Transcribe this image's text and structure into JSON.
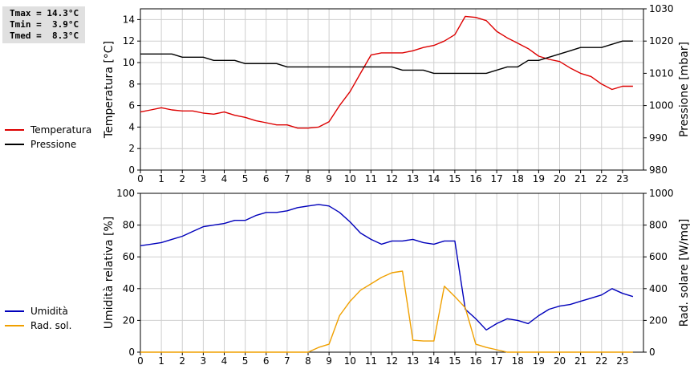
{
  "stats": [
    {
      "label": "Tmax",
      "value": "14.3°C"
    },
    {
      "label": "Tmin",
      "value": "3.9°C"
    },
    {
      "label": "Tmed",
      "value": "8.3°C"
    }
  ],
  "colors": {
    "temperature": "#dd0000",
    "pressure": "#000000",
    "humidity": "#0000bb",
    "radiation": "#f0a000",
    "grid": "#cfcfcf"
  },
  "chart_data": [
    {
      "type": "line",
      "xlabel": "",
      "ylabel": "Temperatura [°C]",
      "y2label": "Pressione [mbar]",
      "xlim": [
        0,
        24
      ],
      "ylim": [
        0,
        15
      ],
      "y2lim": [
        980,
        1030
      ],
      "xticks": [
        0,
        1,
        2,
        3,
        4,
        5,
        6,
        7,
        8,
        9,
        10,
        11,
        12,
        13,
        14,
        15,
        16,
        17,
        18,
        19,
        20,
        21,
        22,
        23
      ],
      "yticks": [
        0,
        2,
        4,
        6,
        8,
        10,
        12,
        14
      ],
      "y2ticks": [
        980,
        990,
        1000,
        1010,
        1020,
        1030
      ],
      "grid": true,
      "legend": "left",
      "series": [
        {
          "name": "Temperatura",
          "axis": "left",
          "x": [
            0,
            0.5,
            1,
            1.5,
            2,
            2.5,
            3,
            3.5,
            4,
            4.5,
            5,
            5.5,
            6,
            6.5,
            7,
            7.5,
            8,
            8.5,
            9,
            9.5,
            10,
            10.5,
            11,
            11.5,
            12,
            12.5,
            13,
            13.5,
            14,
            14.5,
            15,
            15.5,
            16,
            16.5,
            17,
            17.5,
            18,
            18.5,
            19,
            19.5,
            20,
            20.5,
            21,
            21.5,
            22,
            22.5,
            23,
            23.5
          ],
          "y": [
            5.4,
            5.6,
            5.8,
            5.6,
            5.5,
            5.5,
            5.3,
            5.2,
            5.4,
            5.1,
            4.9,
            4.6,
            4.4,
            4.2,
            4.2,
            3.9,
            3.9,
            4.0,
            4.5,
            6.0,
            7.3,
            9.0,
            10.7,
            10.9,
            10.9,
            10.9,
            11.1,
            11.4,
            11.6,
            12.0,
            12.6,
            14.3,
            14.2,
            13.9,
            12.9,
            12.3,
            11.8,
            11.3,
            10.6,
            10.3,
            10.1,
            9.5,
            9.0,
            8.7,
            8.0,
            7.5,
            7.8,
            7.8
          ]
        },
        {
          "name": "Pressione",
          "axis": "right",
          "x": [
            0,
            0.5,
            1,
            1.5,
            2,
            2.5,
            3,
            3.5,
            4,
            4.5,
            5,
            5.5,
            6,
            6.5,
            7,
            7.5,
            8,
            8.5,
            9,
            9.5,
            10,
            10.5,
            11,
            11.5,
            12,
            12.5,
            13,
            13.5,
            14,
            14.5,
            15,
            15.5,
            16,
            16.5,
            17,
            17.5,
            18,
            18.5,
            19,
            19.5,
            20,
            20.5,
            21,
            21.5,
            22,
            22.5,
            23,
            23.5
          ],
          "y": [
            1016,
            1016,
            1016,
            1016,
            1015,
            1015,
            1015,
            1014,
            1014,
            1014,
            1013,
            1013,
            1013,
            1013,
            1012,
            1012,
            1012,
            1012,
            1012,
            1012,
            1012,
            1012,
            1012,
            1012,
            1012,
            1011,
            1011,
            1011,
            1010,
            1010,
            1010,
            1010,
            1010,
            1010,
            1011,
            1012,
            1012,
            1014,
            1014,
            1015,
            1016,
            1017,
            1018,
            1018,
            1018,
            1019,
            1020,
            1020
          ]
        }
      ]
    },
    {
      "type": "line",
      "xlabel": "",
      "ylabel": "Umidità relativa [%]",
      "y2label": "Rad. solare [W/mq]",
      "xlim": [
        0,
        24
      ],
      "ylim": [
        0,
        100
      ],
      "y2lim": [
        0,
        1000
      ],
      "xticks": [
        0,
        1,
        2,
        3,
        4,
        5,
        6,
        7,
        8,
        9,
        10,
        11,
        12,
        13,
        14,
        15,
        16,
        17,
        18,
        19,
        20,
        21,
        22,
        23
      ],
      "yticks": [
        0,
        20,
        40,
        60,
        80,
        100
      ],
      "y2ticks": [
        0,
        200,
        400,
        600,
        800,
        1000
      ],
      "grid": true,
      "legend": "left",
      "series": [
        {
          "name": "Umidità",
          "axis": "left",
          "x": [
            0,
            0.5,
            1,
            1.5,
            2,
            2.5,
            3,
            3.5,
            4,
            4.5,
            5,
            5.5,
            6,
            6.5,
            7,
            7.5,
            8,
            8.5,
            9,
            9.5,
            10,
            10.5,
            11,
            11.5,
            12,
            12.5,
            13,
            13.5,
            14,
            14.5,
            15,
            15.5,
            16,
            16.5,
            17,
            17.5,
            18,
            18.5,
            19,
            19.5,
            20,
            20.5,
            21,
            21.5,
            22,
            22.5,
            23,
            23.5
          ],
          "y": [
            67,
            68,
            69,
            71,
            73,
            76,
            79,
            80,
            81,
            83,
            83,
            86,
            88,
            88,
            89,
            91,
            92,
            93,
            92,
            88,
            82,
            75,
            71,
            68,
            70,
            70,
            71,
            69,
            68,
            70,
            70,
            27,
            21,
            14,
            18,
            21,
            20,
            18,
            23,
            27,
            29,
            30,
            32,
            34,
            36,
            40,
            37,
            35
          ]
        },
        {
          "name": "Rad. sol.",
          "axis": "right",
          "x": [
            0,
            0.5,
            1,
            1.5,
            2,
            2.5,
            3,
            3.5,
            4,
            4.5,
            5,
            5.5,
            6,
            6.5,
            7,
            7.5,
            8,
            8.5,
            9,
            9.5,
            10,
            10.5,
            11,
            11.5,
            12,
            12.5,
            13,
            13.5,
            14,
            14.5,
            15,
            15.5,
            16,
            16.5,
            17,
            17.5,
            18,
            18.5,
            19,
            19.5,
            20,
            20.5,
            21,
            21.5,
            22,
            22.5,
            23,
            23.5
          ],
          "y": [
            0,
            0,
            0,
            0,
            0,
            0,
            0,
            0,
            0,
            0,
            0,
            0,
            0,
            0,
            0,
            0,
            0,
            30,
            50,
            230,
            320,
            390,
            430,
            470,
            500,
            510,
            75,
            70,
            70,
            415,
            350,
            280,
            50,
            30,
            15,
            0,
            0,
            0,
            0,
            0,
            0,
            0,
            0,
            0,
            0,
            0,
            0,
            0
          ]
        }
      ]
    }
  ]
}
